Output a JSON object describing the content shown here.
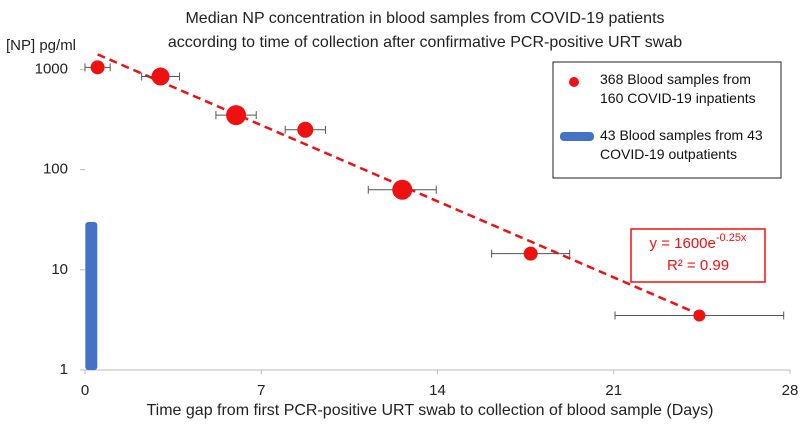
{
  "chart_data": {
    "type": "scatter",
    "title": [
      "Median NP concentration in blood samples from COVID-19 patients",
      "according to time of collection after confirmative PCR-positive URT swab"
    ],
    "y_label": "[NP] pg/ml",
    "x_label": "Time gap from first PCR-positive URT swab to collection of blood sample (Days)",
    "xlim": [
      0,
      28
    ],
    "xticks": [
      0,
      7,
      14,
      21,
      28
    ],
    "ylim": [
      1,
      1600
    ],
    "log_y": true,
    "yticks": [
      1,
      10,
      100,
      1000
    ],
    "series": [
      {
        "name": "368 Blood samples from 160 COVID-19 inpatients",
        "color": "#ee1111",
        "type": "scatter",
        "x": [
          0.5,
          3.0,
          6.0,
          8.75,
          12.6,
          17.7,
          24.4
        ],
        "values": [
          1050,
          850,
          350,
          250,
          63,
          14.5,
          3.5
        ],
        "xerr": [
          0.5,
          0.75,
          0.8,
          0.8,
          1.35,
          1.55,
          3.35
        ],
        "sizes": [
          7,
          9,
          10,
          8,
          10,
          7,
          6
        ]
      },
      {
        "name": "43 Blood samples from 43 COVID-19 outpatients",
        "color": "#4472c4",
        "type": "bar",
        "x": [
          0.25
        ],
        "values": [
          30
        ]
      }
    ],
    "trend": {
      "a": 1600,
      "k": -0.25,
      "x_range": [
        0.5,
        24.5
      ],
      "color": "#ee1111",
      "equation": "y = 1600e",
      "exponent": "-0.25x",
      "r2": "R² = 0.99"
    },
    "legend": "upper right"
  }
}
